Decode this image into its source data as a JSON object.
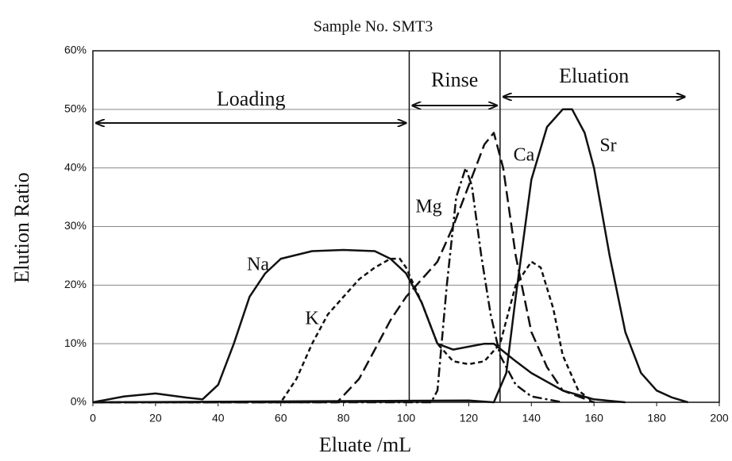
{
  "chart_data": {
    "type": "line",
    "title": "Sample No. SMT3",
    "x_label": "Eluate /mL",
    "y_label": "Elution Ratio",
    "xlim": [
      0,
      200
    ],
    "xticks": [
      0,
      20,
      40,
      60,
      80,
      100,
      120,
      140,
      160,
      180,
      200
    ],
    "ylim": [
      0,
      60
    ],
    "yticks": [
      {
        "value": 0,
        "label": "0%"
      },
      {
        "value": 10,
        "label": "10%"
      },
      {
        "value": 20,
        "label": "20%"
      },
      {
        "value": 30,
        "label": "30%"
      },
      {
        "value": 40,
        "label": "40%"
      },
      {
        "value": 50,
        "label": "50%"
      },
      {
        "value": 60,
        "label": "60%"
      }
    ],
    "grid": true,
    "phases": [
      {
        "name": "Loading",
        "start": 0,
        "end": 101
      },
      {
        "name": "Rinse",
        "start": 101,
        "end": 130
      },
      {
        "name": "Eluation",
        "start": 130,
        "end": 190
      }
    ],
    "series": [
      {
        "name": "Na",
        "color": "#111111",
        "dash": "solid",
        "x": [
          0,
          10,
          20,
          30,
          35,
          40,
          45,
          50,
          55,
          60,
          70,
          80,
          90,
          95,
          100,
          105,
          110,
          115,
          120,
          125,
          128,
          135,
          140,
          150,
          160,
          170
        ],
        "values": [
          0,
          1,
          1.5,
          0.8,
          0.5,
          3,
          10,
          18,
          22,
          24.5,
          25.8,
          26,
          25.8,
          24.5,
          22,
          17,
          10,
          9,
          9.5,
          10,
          10,
          7,
          5,
          2,
          0.5,
          0
        ]
      },
      {
        "name": "K",
        "color": "#111111",
        "dash": "short",
        "x": [
          0,
          60,
          65,
          70,
          75,
          80,
          85,
          90,
          95,
          98,
          100,
          105,
          110,
          115,
          120,
          125,
          130,
          135,
          140,
          143,
          147,
          150,
          155,
          160
        ],
        "values": [
          0,
          0,
          4,
          10,
          15,
          18,
          21,
          23,
          24.5,
          24.5,
          23,
          17,
          10,
          7,
          6.5,
          7,
          10,
          20,
          24,
          23,
          16,
          8,
          2,
          0
        ]
      },
      {
        "name": "Mg",
        "color": "#111111",
        "dash": "dashdot",
        "x": [
          0,
          108,
          110,
          113,
          116,
          119,
          121,
          124,
          127,
          130,
          135,
          140,
          150
        ],
        "values": [
          0,
          0,
          2,
          20,
          35,
          40,
          37,
          25,
          15,
          8,
          3,
          1,
          0
        ]
      },
      {
        "name": "Ca",
        "color": "#111111",
        "dash": "long",
        "x": [
          0,
          78,
          85,
          90,
          95,
          100,
          105,
          110,
          115,
          120,
          125,
          128,
          131,
          135,
          140,
          145,
          150,
          160
        ],
        "values": [
          0,
          0,
          4,
          9,
          14,
          18,
          21,
          24,
          30,
          37,
          44,
          46,
          40,
          25,
          12,
          6,
          2,
          0
        ]
      },
      {
        "name": "Sr",
        "color": "#111111",
        "dash": "solid",
        "x": [
          0,
          120,
          128,
          132,
          135,
          140,
          145,
          150,
          153,
          157,
          160,
          165,
          170,
          175,
          180,
          185,
          190
        ],
        "values": [
          0,
          0.3,
          0,
          5,
          18,
          38,
          47,
          50,
          50,
          46,
          40,
          25,
          12,
          5,
          2,
          0.8,
          0
        ]
      }
    ]
  }
}
